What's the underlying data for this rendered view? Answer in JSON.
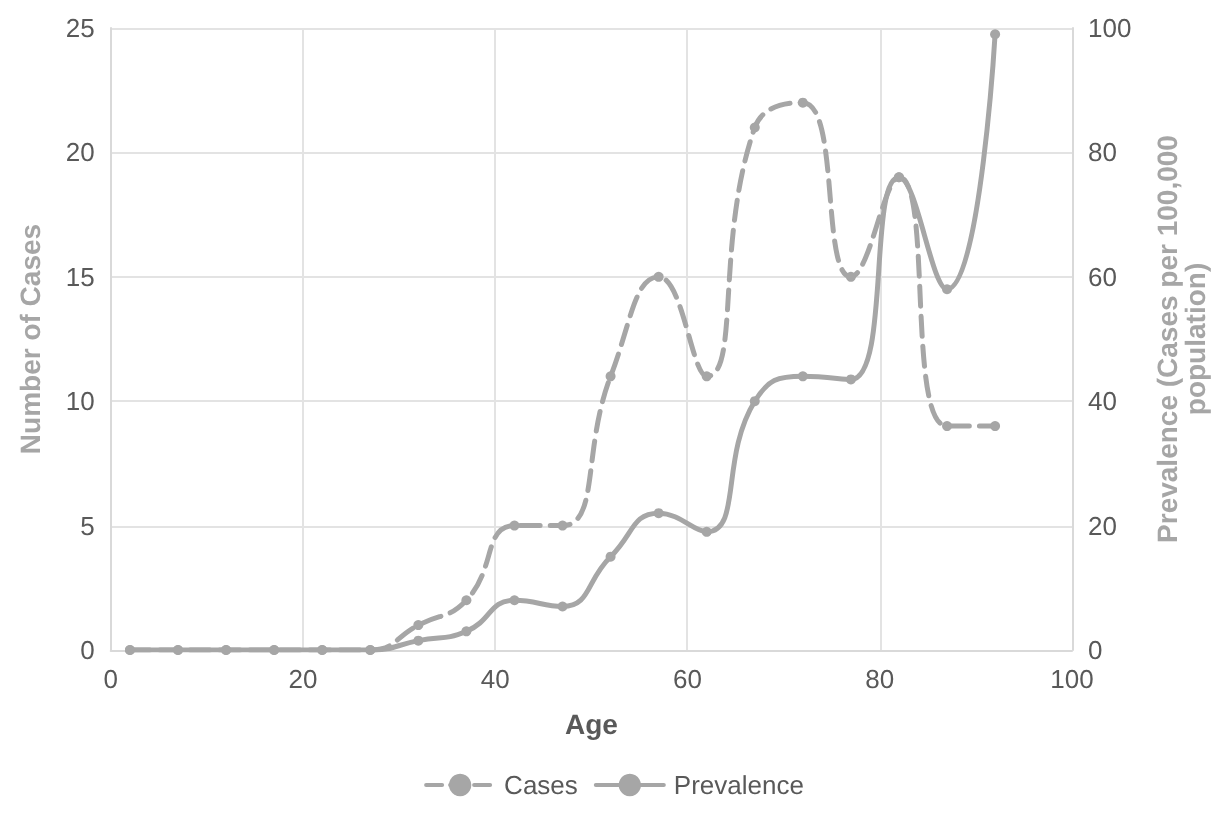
{
  "chart_data": {
    "type": "line",
    "xlabel": "Age",
    "ylabel": "Number of Cases",
    "y2label": "Prevalence (Cases per 100,000\npopulation)",
    "x": [
      2,
      7,
      12,
      17,
      22,
      27,
      32,
      37,
      42,
      47,
      52,
      57,
      62,
      67,
      72,
      77,
      82,
      87,
      92
    ],
    "series": [
      {
        "name": "Cases",
        "color": "#a6a6a6",
        "line_style": "dashed",
        "values": [
          0,
          0,
          0,
          0,
          0,
          0,
          1,
          2,
          5,
          5,
          11,
          15,
          11,
          21,
          22,
          15,
          19,
          9,
          9
        ]
      },
      {
        "name": "Prevalence",
        "color": "#a6a6a6",
        "line_style": "solid",
        "axis": "y2",
        "values": [
          0,
          0,
          0,
          0,
          0,
          0,
          1.5,
          3,
          8,
          7,
          15,
          22,
          19,
          40,
          44,
          43.5,
          76,
          58,
          99
        ]
      }
    ],
    "xlim": [
      0,
      100
    ],
    "xticks": [
      0,
      20,
      40,
      60,
      80,
      100
    ],
    "ylim": [
      0,
      25
    ],
    "yticks": [
      0,
      5,
      10,
      15,
      20,
      25
    ],
    "y2lim": [
      0,
      100
    ],
    "y2ticks": [
      0,
      20,
      40,
      60,
      80,
      100
    ],
    "grid": true,
    "legend": "bottom",
    "marker": "circle"
  }
}
